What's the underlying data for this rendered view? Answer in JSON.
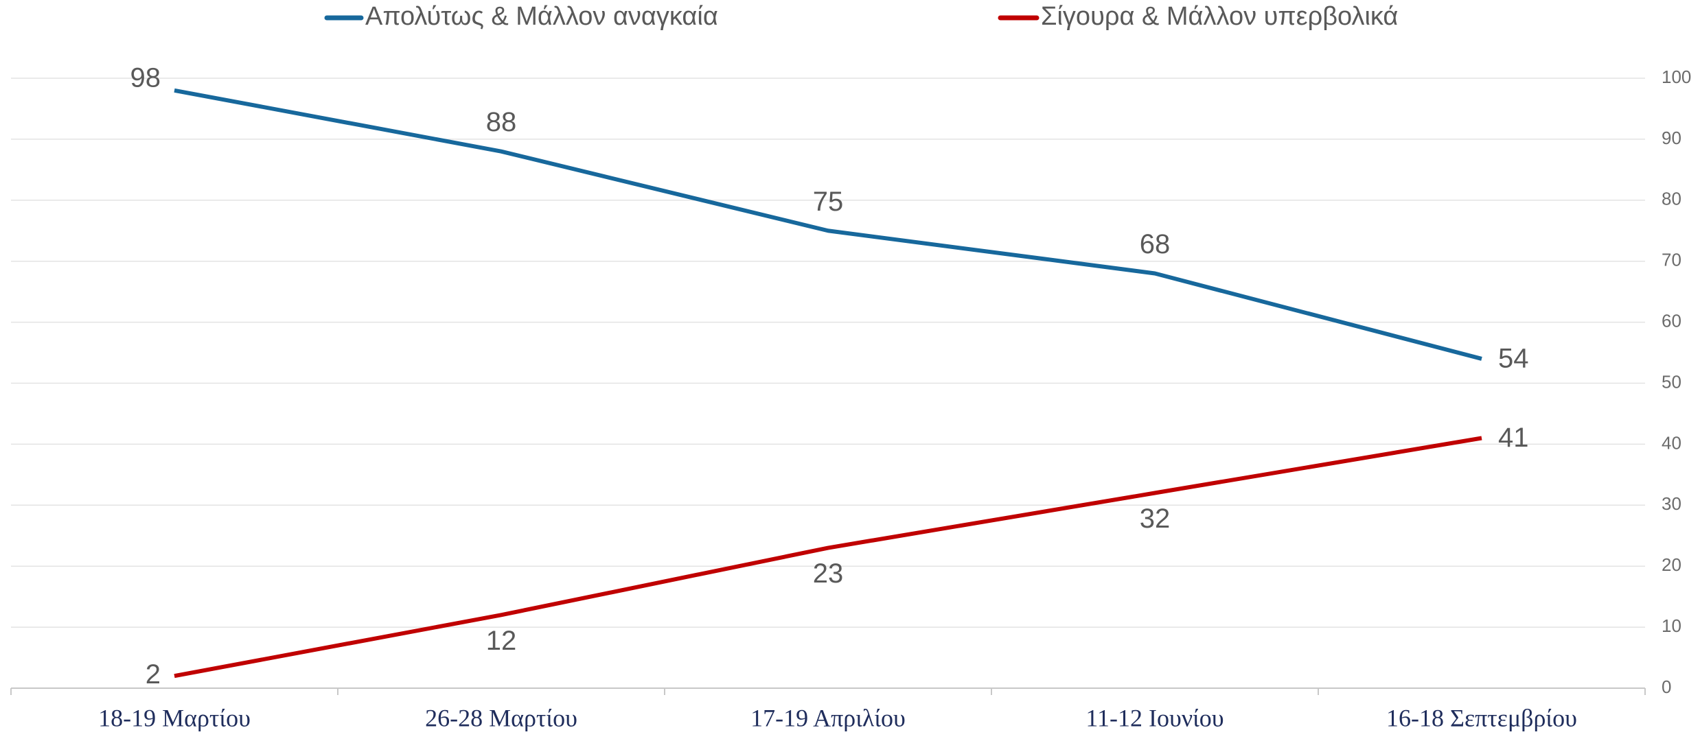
{
  "chart_data": {
    "type": "line",
    "categories": [
      "18-19 Μαρτίου",
      "26-28 Μαρτίου",
      "17-19 Απριλίου",
      "11-12 Ιουνίου",
      "16-18 Σεπτεμβρίου"
    ],
    "series": [
      {
        "name": "Απολύτως & Μάλλον αναγκαία",
        "color": "#17689c",
        "values": [
          98,
          88,
          75,
          68,
          54
        ]
      },
      {
        "name": "Σίγουρα & Μάλλον υπερβολικά",
        "color": "#c00000",
        "values": [
          2,
          12,
          23,
          32,
          41
        ]
      }
    ],
    "ylim": [
      0,
      100
    ],
    "yticks": [
      0,
      10,
      20,
      30,
      40,
      50,
      60,
      70,
      80,
      90,
      100
    ],
    "grid": true,
    "y_axis_side": "right",
    "legend": "top"
  }
}
